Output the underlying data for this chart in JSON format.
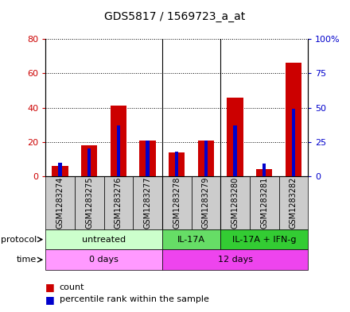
{
  "title": "GDS5817 / 1569723_a_at",
  "samples": [
    "GSM1283274",
    "GSM1283275",
    "GSM1283276",
    "GSM1283277",
    "GSM1283278",
    "GSM1283279",
    "GSM1283280",
    "GSM1283281",
    "GSM1283282"
  ],
  "count_values": [
    6,
    18,
    41,
    21,
    14,
    21,
    46,
    4,
    66
  ],
  "percentile_values": [
    10,
    20,
    37,
    26,
    18,
    26,
    37,
    9,
    49
  ],
  "ylim_left": [
    0,
    80
  ],
  "ylim_right": [
    0,
    100
  ],
  "yticks_left": [
    0,
    20,
    40,
    60,
    80
  ],
  "yticks_right": [
    0,
    25,
    50,
    75,
    100
  ],
  "ytick_labels_right": [
    "0",
    "25",
    "50",
    "75",
    "100%"
  ],
  "bar_color": "#cc0000",
  "dot_color": "#0000cc",
  "left_tick_color": "#cc0000",
  "right_tick_color": "#0000cc",
  "protocol_groups": [
    {
      "label": "untreated",
      "start": 0,
      "end": 4,
      "color": "#ccffcc"
    },
    {
      "label": "IL-17A",
      "start": 4,
      "end": 6,
      "color": "#66dd66"
    },
    {
      "label": "IL-17A + IFN-g",
      "start": 6,
      "end": 9,
      "color": "#33cc33"
    }
  ],
  "time_groups": [
    {
      "label": "0 days",
      "start": 0,
      "end": 4,
      "color": "#ff99ff"
    },
    {
      "label": "12 days",
      "start": 4,
      "end": 9,
      "color": "#ee44ee"
    }
  ],
  "sample_bg_color": "#cccccc",
  "legend_count_label": "count",
  "legend_percentile_label": "percentile rank within the sample"
}
